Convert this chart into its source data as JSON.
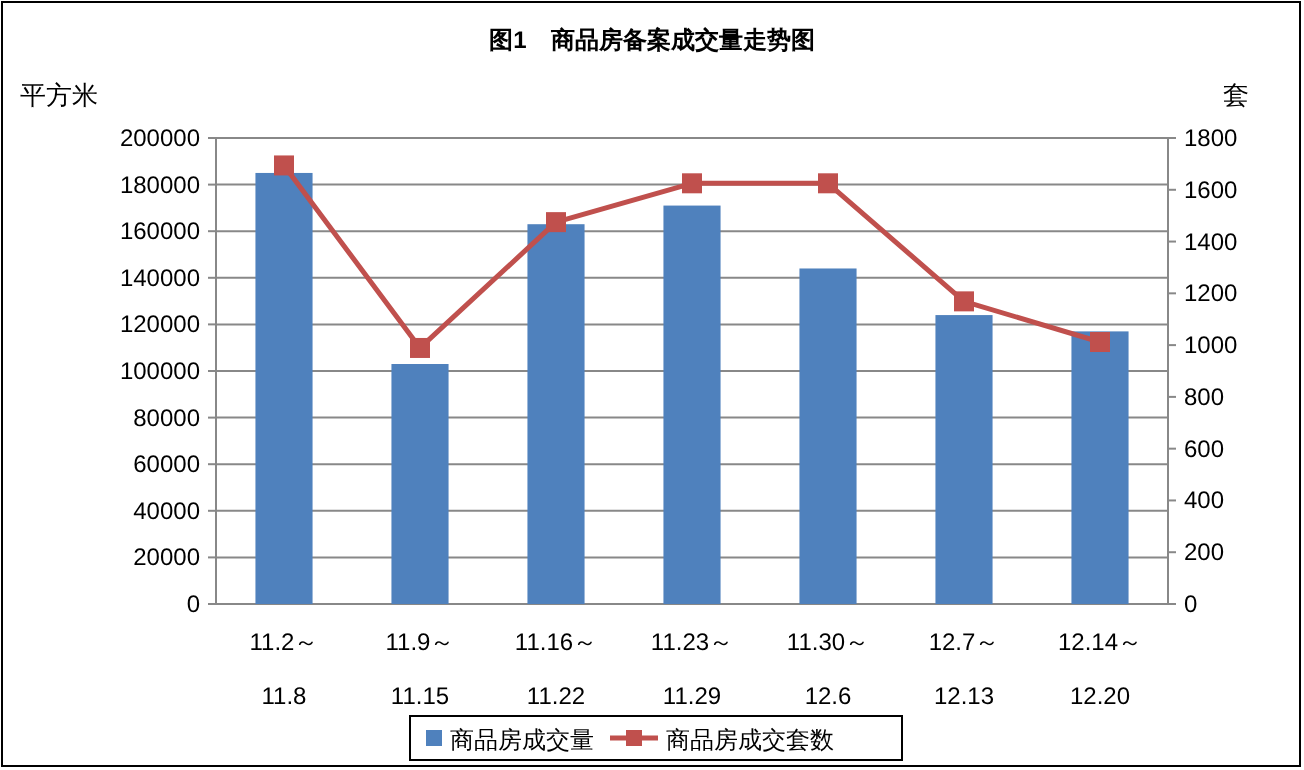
{
  "chart_data": {
    "type": "bar",
    "title": "图1　商品房备案成交量走势图",
    "ylabel": "平方米",
    "y2label": "套",
    "categories": [
      "11.2～\n11.8",
      "11.9～\n11.15",
      "11.16～\n11.22",
      "11.23～\n11.29",
      "11.30～\n12.6",
      "12.7～\n12.13",
      "12.14～\n12.20"
    ],
    "series": [
      {
        "name": "商品房成交量",
        "color": "#4f81bd",
        "values": [
          185000,
          103000,
          163000,
          171000,
          144000,
          124000,
          117000
        ]
      },
      {
        "name": "商品房成交套数",
        "type": "line",
        "axis": "y2",
        "color": "#c0504d",
        "marker": "square",
        "values": [
          1694,
          989,
          1475,
          1625,
          1625,
          1169,
          1012
        ]
      }
    ],
    "ylim": [
      0,
      200000
    ],
    "yticks": [
      0,
      20000,
      40000,
      60000,
      80000,
      100000,
      120000,
      140000,
      160000,
      180000,
      200000
    ],
    "y2lim": [
      0,
      1800
    ],
    "y2ticks": [
      0,
      200,
      400,
      600,
      800,
      1000,
      1200,
      1400,
      1600,
      1800
    ],
    "grid": "y",
    "legend": "bottom"
  }
}
